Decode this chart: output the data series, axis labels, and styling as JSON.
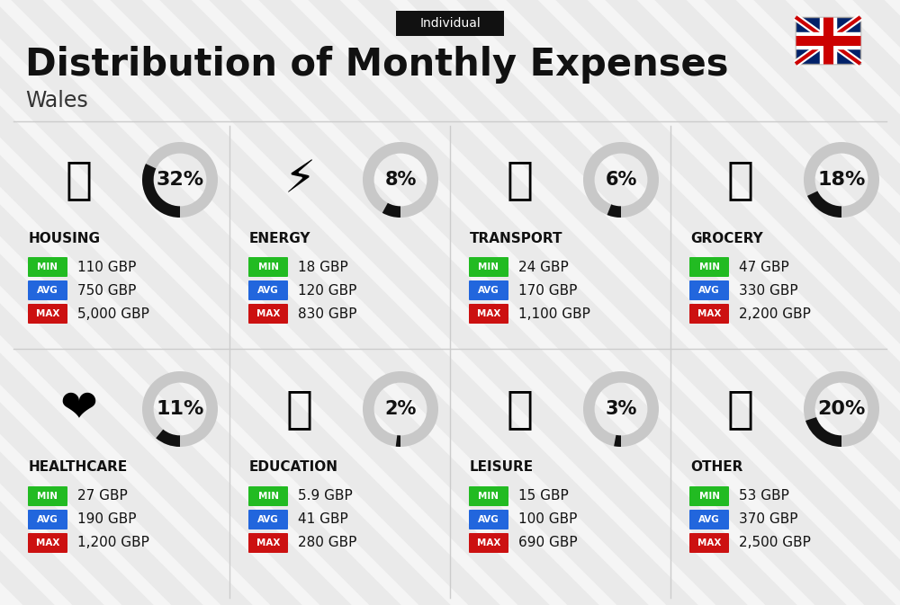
{
  "title": "Distribution of Monthly Expenses",
  "subtitle": "Wales",
  "badge": "Individual",
  "bg_color": "#f5f5f5",
  "stripe_color": "#e0e0e0",
  "categories": [
    {
      "name": "HOUSING",
      "pct": 32,
      "min": "110 GBP",
      "avg": "750 GBP",
      "max": "5,000 GBP",
      "col": 0,
      "row": 0,
      "icon": "🏢"
    },
    {
      "name": "ENERGY",
      "pct": 8,
      "min": "18 GBP",
      "avg": "120 GBP",
      "max": "830 GBP",
      "col": 1,
      "row": 0,
      "icon": "⚡"
    },
    {
      "name": "TRANSPORT",
      "pct": 6,
      "min": "24 GBP",
      "avg": "170 GBP",
      "max": "1,100 GBP",
      "col": 2,
      "row": 0,
      "icon": "🚌"
    },
    {
      "name": "GROCERY",
      "pct": 18,
      "min": "47 GBP",
      "avg": "330 GBP",
      "max": "2,200 GBP",
      "col": 3,
      "row": 0,
      "icon": "🛒"
    },
    {
      "name": "HEALTHCARE",
      "pct": 11,
      "min": "27 GBP",
      "avg": "190 GBP",
      "max": "1,200 GBP",
      "col": 0,
      "row": 1,
      "icon": "❤️"
    },
    {
      "name": "EDUCATION",
      "pct": 2,
      "min": "5.9 GBP",
      "avg": "41 GBP",
      "max": "280 GBP",
      "col": 1,
      "row": 1,
      "icon": "🎓"
    },
    {
      "name": "LEISURE",
      "pct": 3,
      "min": "15 GBP",
      "avg": "100 GBP",
      "max": "690 GBP",
      "col": 2,
      "row": 1,
      "icon": "🛍"
    },
    {
      "name": "OTHER",
      "pct": 20,
      "min": "53 GBP",
      "avg": "370 GBP",
      "max": "2,500 GBP",
      "col": 3,
      "row": 1,
      "icon": "💰"
    }
  ],
  "min_color": "#22bb22",
  "avg_color": "#2266dd",
  "max_color": "#cc1111",
  "donut_bg": "#c8c8c8",
  "donut_fg": "#111111"
}
